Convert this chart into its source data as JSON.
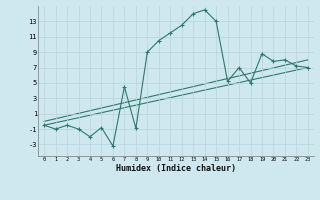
{
  "xlabel": "Humidex (Indice chaleur)",
  "background_color": "#cfe8ef",
  "grid_color": "#b8d4dc",
  "line_color": "#2a7a6a",
  "line1": {
    "x": [
      0,
      1,
      2,
      3,
      4,
      5,
      6,
      7,
      8,
      9,
      10,
      11,
      12,
      13,
      14,
      15,
      16,
      17,
      18,
      19,
      20,
      21,
      22,
      23
    ],
    "y": [
      -0.5,
      -1.0,
      -0.5,
      -1.0,
      -2.0,
      -0.8,
      -3.2,
      4.5,
      -0.9,
      9.0,
      10.5,
      11.5,
      12.5,
      14.0,
      14.5,
      13.0,
      5.2,
      7.0,
      5.0,
      8.8,
      7.8,
      8.0,
      7.2,
      7.0
    ]
  },
  "line2": {
    "x": [
      0,
      23
    ],
    "y": [
      -0.5,
      7.0
    ]
  },
  "line3": {
    "x": [
      0,
      23
    ],
    "y": [
      0.0,
      8.0
    ]
  },
  "xlim": [
    -0.5,
    23.5
  ],
  "ylim": [
    -4.5,
    15.0
  ],
  "yticks": [
    -3,
    -1,
    1,
    3,
    5,
    7,
    9,
    11,
    13
  ],
  "xticks": [
    0,
    1,
    2,
    3,
    4,
    5,
    6,
    7,
    8,
    9,
    10,
    11,
    12,
    13,
    14,
    15,
    16,
    17,
    18,
    19,
    20,
    21,
    22,
    23
  ]
}
